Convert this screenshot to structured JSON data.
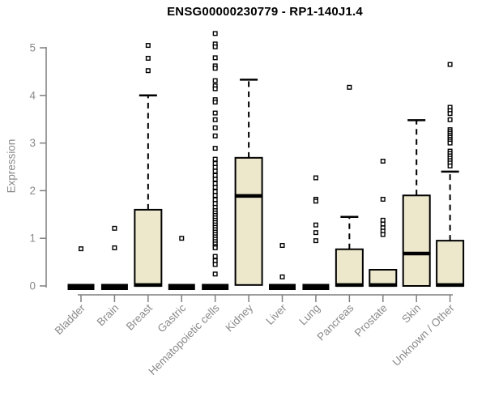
{
  "chart_data": {
    "type": "boxplot",
    "title": "ENSG00000230779 - RP1-140J1.4",
    "ylabel": "Expression",
    "xlabel": "",
    "ylim": [
      0,
      5.4
    ],
    "yticks": [
      0,
      1,
      2,
      3,
      4,
      5
    ],
    "grid": false,
    "legend": "none",
    "categories": [
      "Bladder",
      "Brain",
      "Breast",
      "Gastric",
      "Hematopoietic cells",
      "Kidney",
      "Liver",
      "Lung",
      "Pancreas",
      "Prostate",
      "Skin",
      "Unknown / Other"
    ],
    "boxes": [
      {
        "category": "Bladder",
        "q1": 0,
        "median": 0,
        "q3": 0,
        "whisker_low": 0,
        "whisker_high": 0,
        "outliers": [
          0.78
        ]
      },
      {
        "category": "Brain",
        "q1": 0,
        "median": 0,
        "q3": 0,
        "whisker_low": 0,
        "whisker_high": 0,
        "outliers": [
          1.21,
          0.8
        ]
      },
      {
        "category": "Breast",
        "q1": 0,
        "median": 0.02,
        "q3": 1.6,
        "whisker_low": 0,
        "whisker_high": 4.0,
        "outliers": [
          5.05,
          4.78,
          4.52
        ]
      },
      {
        "category": "Gastric",
        "q1": 0,
        "median": 0,
        "q3": 0,
        "whisker_low": 0,
        "whisker_high": 0,
        "outliers": [
          1.0
        ]
      },
      {
        "category": "Hematopoietic cells",
        "q1": 0,
        "median": 0,
        "q3": 0,
        "whisker_low": 0,
        "whisker_high": 0,
        "outliers": [
          5.3,
          5.08,
          5.02,
          4.79,
          4.62,
          4.57,
          4.31,
          4.2,
          4.14,
          3.91,
          3.86,
          3.63,
          3.49,
          3.32,
          3.15,
          2.89,
          2.66,
          2.57,
          2.49,
          2.41,
          2.32,
          2.24,
          2.15,
          2.07,
          1.98,
          1.9,
          1.81,
          1.73,
          1.65,
          1.58,
          1.53,
          1.48,
          1.43,
          1.38,
          1.33,
          1.28,
          1.23,
          1.18,
          1.13,
          1.08,
          1.03,
          0.98,
          0.93,
          0.88,
          0.83,
          0.8,
          0.62,
          0.53,
          0.45,
          0.25
        ]
      },
      {
        "category": "Kidney",
        "q1": 0.02,
        "median": 1.89,
        "q3": 2.69,
        "whisker_low": 0.02,
        "whisker_high": 4.33,
        "outliers": []
      },
      {
        "category": "Liver",
        "q1": 0,
        "median": 0,
        "q3": 0,
        "whisker_low": 0,
        "whisker_high": 0,
        "outliers": [
          0.85,
          0.19
        ]
      },
      {
        "category": "Lung",
        "q1": 0,
        "median": 0,
        "q3": 0,
        "whisker_low": 0,
        "whisker_high": 0,
        "outliers": [
          2.27,
          1.82,
          1.78,
          1.28,
          1.12,
          0.95
        ]
      },
      {
        "category": "Pancreas",
        "q1": 0,
        "median": 0.02,
        "q3": 0.77,
        "whisker_low": 0,
        "whisker_high": 1.45,
        "outliers": [
          4.17
        ]
      },
      {
        "category": "Prostate",
        "q1": 0,
        "median": 0.02,
        "q3": 0.34,
        "whisker_low": 0,
        "whisker_high": 0.34,
        "outliers": [
          2.62,
          1.82,
          1.38,
          1.3,
          1.22,
          1.15,
          1.08
        ]
      },
      {
        "category": "Skin",
        "q1": 0,
        "median": 0.68,
        "q3": 1.9,
        "whisker_low": 0,
        "whisker_high": 3.48,
        "outliers": []
      },
      {
        "category": "Unknown / Other",
        "q1": 0,
        "median": 0.02,
        "q3": 0.95,
        "whisker_low": 0,
        "whisker_high": 2.4,
        "outliers": [
          4.65,
          3.75,
          3.68,
          3.62,
          3.49,
          3.28,
          3.24,
          3.2,
          3.16,
          3.12,
          3.08,
          3.04,
          3.0,
          2.83,
          2.78,
          2.73,
          2.68,
          2.63,
          2.58,
          2.52
        ]
      }
    ],
    "colors": {
      "box_fill": "#EDE8CC",
      "box_border": "#000000",
      "median": "#000000",
      "whisker": "#000000",
      "outlier_stroke": "#000000",
      "outlier_fill": "#FFFFFF",
      "axis_line": "#7F7F7F",
      "tick_label": "#8A8A8A",
      "title": "#000000",
      "background": "#FFFFFF"
    }
  }
}
